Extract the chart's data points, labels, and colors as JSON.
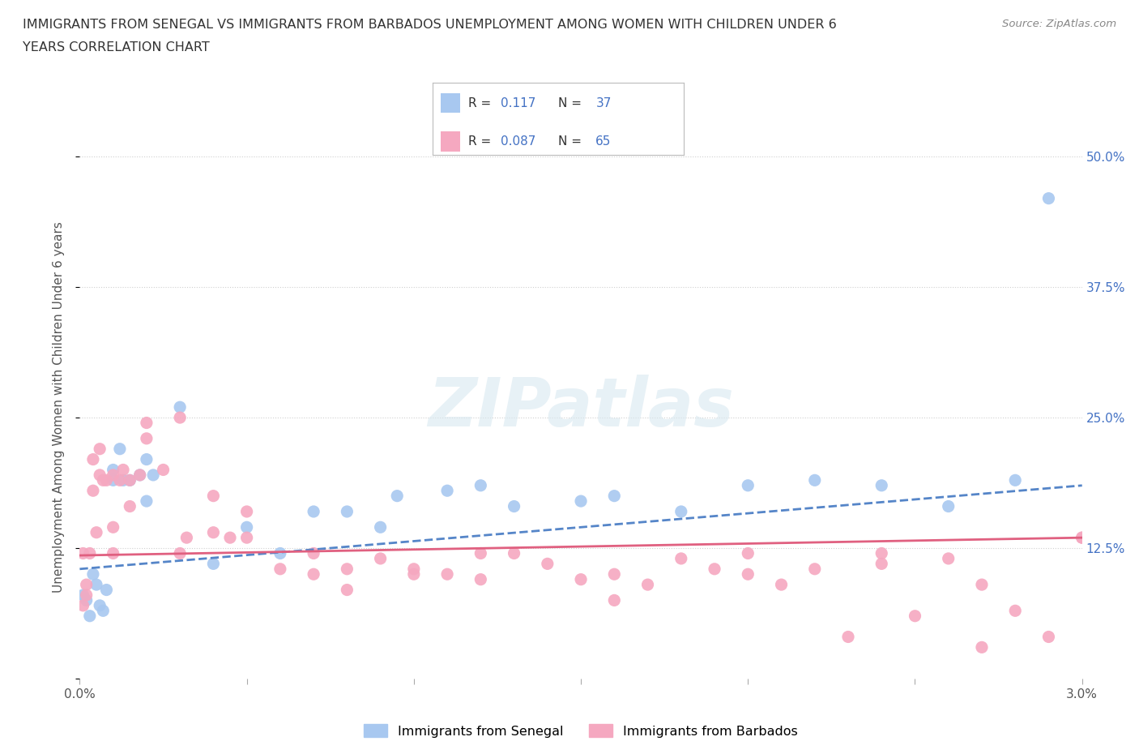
{
  "title_line1": "IMMIGRANTS FROM SENEGAL VS IMMIGRANTS FROM BARBADOS UNEMPLOYMENT AMONG WOMEN WITH CHILDREN UNDER 6",
  "title_line2": "YEARS CORRELATION CHART",
  "source": "Source: ZipAtlas.com",
  "ylabel": "Unemployment Among Women with Children Under 6 years",
  "xlim": [
    0.0,
    0.03
  ],
  "ylim": [
    0.0,
    0.52
  ],
  "ytick_positions": [
    0.0,
    0.125,
    0.25,
    0.375,
    0.5
  ],
  "ytick_labels": [
    "",
    "12.5%",
    "25.0%",
    "37.5%",
    "50.0%"
  ],
  "senegal_color": "#a8c8f0",
  "barbados_color": "#f5a8c0",
  "senegal_line_color": "#5585c8",
  "barbados_line_color": "#e06080",
  "R_senegal": "0.117",
  "N_senegal": "37",
  "R_barbados": "0.087",
  "N_barbados": "65",
  "stat_color": "#4472c4",
  "grid_color": "#d0d0d0",
  "background_color": "#ffffff",
  "senegal_label": "Immigrants from Senegal",
  "barbados_label": "Immigrants from Barbados",
  "senegal_x": [
    0.0001,
    0.0002,
    0.0003,
    0.0004,
    0.0005,
    0.0006,
    0.0007,
    0.0008,
    0.001,
    0.001,
    0.0012,
    0.0013,
    0.0015,
    0.0018,
    0.002,
    0.002,
    0.0022,
    0.003,
    0.004,
    0.005,
    0.006,
    0.007,
    0.008,
    0.009,
    0.0095,
    0.011,
    0.012,
    0.013,
    0.015,
    0.016,
    0.018,
    0.02,
    0.022,
    0.024,
    0.026,
    0.028,
    0.029
  ],
  "senegal_y": [
    0.08,
    0.075,
    0.06,
    0.1,
    0.09,
    0.07,
    0.065,
    0.085,
    0.2,
    0.19,
    0.22,
    0.19,
    0.19,
    0.195,
    0.17,
    0.21,
    0.195,
    0.26,
    0.11,
    0.145,
    0.12,
    0.16,
    0.16,
    0.145,
    0.175,
    0.18,
    0.185,
    0.165,
    0.17,
    0.175,
    0.16,
    0.185,
    0.19,
    0.185,
    0.165,
    0.19,
    0.46
  ],
  "barbados_x": [
    0.0001,
    0.0002,
    0.0003,
    0.0004,
    0.0005,
    0.0006,
    0.0007,
    0.0008,
    0.001,
    0.001,
    0.0012,
    0.0013,
    0.0015,
    0.0018,
    0.002,
    0.0025,
    0.003,
    0.0032,
    0.004,
    0.0045,
    0.005,
    0.006,
    0.007,
    0.008,
    0.009,
    0.01,
    0.011,
    0.012,
    0.013,
    0.014,
    0.015,
    0.016,
    0.017,
    0.018,
    0.019,
    0.02,
    0.021,
    0.022,
    0.023,
    0.024,
    0.025,
    0.026,
    0.027,
    0.028,
    0.029,
    0.03,
    0.0001,
    0.0002,
    0.0004,
    0.0006,
    0.001,
    0.0015,
    0.002,
    0.003,
    0.004,
    0.005,
    0.007,
    0.008,
    0.01,
    0.012,
    0.016,
    0.02,
    0.024,
    0.027,
    0.03
  ],
  "barbados_y": [
    0.07,
    0.09,
    0.12,
    0.18,
    0.14,
    0.195,
    0.19,
    0.19,
    0.145,
    0.195,
    0.19,
    0.2,
    0.19,
    0.195,
    0.23,
    0.2,
    0.12,
    0.135,
    0.175,
    0.135,
    0.135,
    0.105,
    0.12,
    0.105,
    0.115,
    0.105,
    0.1,
    0.12,
    0.12,
    0.11,
    0.095,
    0.1,
    0.09,
    0.115,
    0.105,
    0.1,
    0.09,
    0.105,
    0.04,
    0.11,
    0.06,
    0.115,
    0.09,
    0.065,
    0.04,
    0.135,
    0.12,
    0.08,
    0.21,
    0.22,
    0.12,
    0.165,
    0.245,
    0.25,
    0.14,
    0.16,
    0.1,
    0.085,
    0.1,
    0.095,
    0.075,
    0.12,
    0.12,
    0.03,
    0.135
  ],
  "sen_trend_x": [
    0.0,
    0.03
  ],
  "sen_trend_y": [
    0.105,
    0.185
  ],
  "bar_trend_x": [
    0.0,
    0.03
  ],
  "bar_trend_y": [
    0.118,
    0.135
  ]
}
